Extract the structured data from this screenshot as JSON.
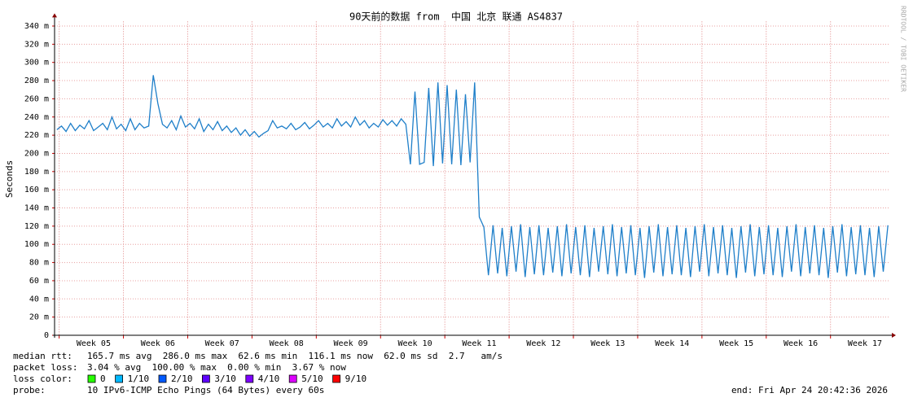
{
  "chart_data": {
    "type": "line",
    "title": "90天前的数据 from  中国 北京 联通 AS4837",
    "y_label": "Seconds",
    "side_label": "RRDTOOL / TOBI OETIKER",
    "ylim": [
      0,
      345
    ],
    "yticks": [
      0,
      {
        "value": 20,
        "label": "20 m"
      },
      {
        "value": 40,
        "label": "40 m"
      },
      {
        "value": 60,
        "label": "60 m"
      },
      {
        "value": 80,
        "label": "80 m"
      },
      {
        "value": 100,
        "label": "100 m"
      },
      {
        "value": 120,
        "label": "120 m"
      },
      {
        "value": 140,
        "label": "140 m"
      },
      {
        "value": 160,
        "label": "160 m"
      },
      {
        "value": 180,
        "label": "180 m"
      },
      {
        "value": 200,
        "label": "200 m"
      },
      {
        "value": 220,
        "label": "220 m"
      },
      {
        "value": 240,
        "label": "240 m"
      },
      {
        "value": 260,
        "label": "260 m"
      },
      {
        "value": 280,
        "label": "280 m"
      },
      {
        "value": 300,
        "label": "300 m"
      },
      {
        "value": 320,
        "label": "320 m"
      },
      {
        "value": 340,
        "label": "340 m"
      }
    ],
    "grid": true,
    "categories": [
      null,
      null,
      null,
      null,
      null,
      null,
      null,
      null,
      "Week 05",
      null,
      null,
      null,
      null,
      null,
      null,
      null,
      null,
      null,
      null,
      null,
      null,
      null,
      "Week 06",
      null,
      null,
      null,
      null,
      null,
      null,
      null,
      null,
      null,
      null,
      null,
      null,
      null,
      "Week 07",
      null,
      null,
      null,
      null,
      null,
      null,
      null,
      null,
      null,
      null,
      null,
      null,
      null,
      "Week 08",
      null,
      null,
      null,
      null,
      null,
      null,
      null,
      null,
      null,
      null,
      null,
      null,
      null,
      "Week 09",
      null,
      null,
      null,
      null,
      null,
      null,
      null,
      null,
      null,
      null,
      null,
      null,
      null,
      "Week 10",
      null,
      null,
      null,
      null,
      null,
      null,
      null,
      null,
      null,
      null,
      null,
      null,
      null,
      "Week 11",
      null,
      null,
      null,
      null,
      null,
      null,
      null,
      null,
      null,
      null,
      null,
      null,
      null,
      "Week 12",
      null,
      null,
      null,
      null,
      null,
      null,
      null,
      null,
      null,
      null,
      null,
      null,
      null,
      "Week 13",
      null,
      null,
      null,
      null,
      null,
      null,
      null,
      null,
      null,
      null,
      null,
      null,
      null,
      "Week 14",
      null,
      null,
      null,
      null,
      null,
      null,
      null,
      null,
      null,
      null,
      null,
      null,
      null,
      "Week 15",
      null,
      null,
      null,
      null,
      null,
      null,
      null,
      null,
      null,
      null,
      null,
      null,
      null,
      "Week 16",
      null,
      null,
      null,
      null,
      null,
      null,
      null,
      null,
      null,
      null,
      null,
      null,
      null,
      "Week 17",
      null,
      null,
      null,
      null,
      null
    ],
    "series": [
      {
        "name": "median rtt:",
        "color": "#1f7fc9",
        "values": [
          226,
          230,
          224,
          233,
          225,
          231,
          227,
          236,
          225,
          229,
          233,
          226,
          240,
          227,
          232,
          225,
          238,
          226,
          233,
          228,
          230,
          286,
          255,
          232,
          228,
          236,
          226,
          241,
          229,
          233,
          227,
          238,
          224,
          232,
          226,
          235,
          225,
          230,
          223,
          228,
          220,
          226,
          219,
          224,
          218,
          222,
          225,
          236,
          228,
          230,
          227,
          233,
          226,
          229,
          234,
          227,
          231,
          236,
          229,
          233,
          228,
          238,
          230,
          235,
          229,
          240,
          231,
          236,
          228,
          233,
          229,
          237,
          231,
          236,
          230,
          238,
          232,
          188,
          268,
          188,
          190,
          272,
          186,
          278,
          189,
          275,
          188,
          270,
          187,
          265,
          190,
          278,
          130,
          119,
          66,
          121,
          68,
          118,
          65,
          120,
          70,
          122,
          64,
          119,
          67,
          121,
          66,
          118,
          69,
          120,
          65,
          122,
          68,
          119,
          66,
          121,
          64,
          118,
          70,
          120,
          67,
          122,
          65,
          119,
          68,
          121,
          66,
          118,
          63,
          120,
          69,
          122,
          65,
          119,
          67,
          121,
          66,
          118,
          64,
          120,
          70,
          122,
          65,
          119,
          68,
          121,
          66,
          118,
          63,
          120,
          69,
          122,
          65,
          119,
          67,
          121,
          66,
          118,
          64,
          120,
          70,
          122,
          65,
          119,
          68,
          121,
          66,
          118,
          63,
          120,
          69,
          122,
          65,
          119,
          67,
          121,
          66,
          118,
          64,
          120,
          70,
          121
        ]
      }
    ],
    "stats": {
      "rtt": "165.7 ms avg  286.0 ms max  62.6 ms min  116.1 ms now  62.0 ms sd  2.7   am/s",
      "packet_loss_label": "packet loss:",
      "packet_loss": "3.04 % avg  100.00 % max  0.00 % min  3.67 % now",
      "loss_color_label": "loss color:",
      "loss_colors": [
        {
          "label": "0",
          "color": "#26ff00"
        },
        {
          "label": "1/10",
          "color": "#00b8ff"
        },
        {
          "label": "2/10",
          "color": "#0059ff"
        },
        {
          "label": "3/10",
          "color": "#5e00ff"
        },
        {
          "label": "4/10",
          "color": "#7e00ff"
        },
        {
          "label": "5/10",
          "color": "#dd00ff"
        },
        {
          "label": "9/10",
          "color": "#ff0000"
        }
      ],
      "probe_label": "probe:",
      "probe": "10 IPv6-ICMP Echo Pings (64 Bytes) every 60s",
      "end": "end: Fri Apr 24 20:42:36 2026"
    }
  }
}
